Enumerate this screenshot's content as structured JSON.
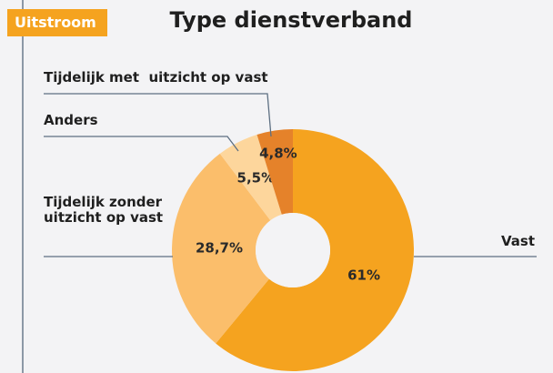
{
  "badge": "Uitstroom",
  "chart_data": {
    "type": "donut",
    "title": "Type dienstverband",
    "categories": [
      "Vast",
      "Tijdelijk zonder uitzicht op vast",
      "Anders",
      "Tijdelijk met  uitzicht op vast"
    ],
    "values": [
      61,
      28.7,
      5.5,
      4.8
    ],
    "value_labels": [
      "61%",
      "28,7%",
      "5,5%",
      "4,8%"
    ],
    "colors": [
      "#f5a31f",
      "#fbbe6b",
      "#fdd69c",
      "#e5822a"
    ]
  }
}
